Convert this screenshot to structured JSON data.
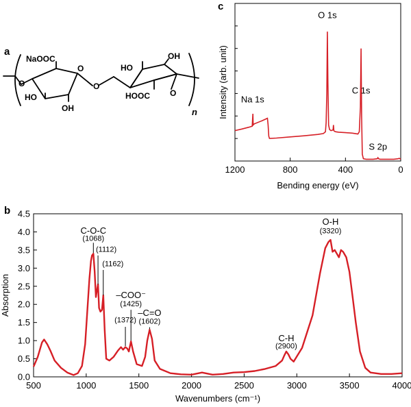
{
  "panels": {
    "a": "a",
    "b": "b",
    "c": "c"
  },
  "structure": {
    "name": "sodium alginate repeat unit",
    "labels": {
      "naooc": "NaOOC",
      "oh_left_bottom": "HO",
      "oh_left_mid": "OH",
      "oh_right_top_left": "HO",
      "oh_right_top": "OH",
      "hooc": "HOOC",
      "n": "n"
    }
  },
  "chart_data": [
    {
      "id": "xps",
      "type": "line",
      "title": "",
      "xlabel": "Bending energy (eV)",
      "ylabel": "Intensity (arb. unit)",
      "xlim": [
        1200,
        0
      ],
      "x_reversed": true,
      "xticks": [
        1200,
        800,
        400,
        0
      ],
      "yticks_unlabeled": true,
      "ylim": [
        0,
        7
      ],
      "line_color": "#d61f26",
      "series": [
        {
          "x": [
            1200,
            1150,
            1100,
            1075,
            1072,
            1070,
            1068,
            1060,
            1000,
            965,
            960,
            955,
            950,
            900,
            800,
            700,
            600,
            560,
            545,
            540,
            535,
            531,
            527,
            522,
            515,
            505,
            490,
            487,
            484,
            480,
            470,
            450,
            400,
            350,
            310,
            300,
            292,
            287,
            283,
            278,
            270,
            250,
            200,
            170,
            165,
            160,
            150,
            100,
            50,
            20,
            10,
            0
          ],
          "y": [
            1.35,
            1.42,
            1.5,
            1.55,
            1.9,
            2.1,
            1.6,
            1.65,
            1.8,
            1.9,
            1.6,
            1.1,
            1.0,
            1.02,
            1.07,
            1.12,
            1.18,
            1.22,
            1.3,
            1.7,
            3.0,
            5.75,
            3.5,
            1.6,
            1.4,
            1.35,
            1.38,
            1.6,
            1.35,
            1.32,
            1.3,
            1.28,
            1.26,
            1.24,
            1.2,
            1.3,
            2.4,
            5.0,
            2.0,
            0.3,
            0.1,
            0.08,
            0.08,
            0.1,
            0.15,
            0.1,
            0.08,
            0.08,
            0.08,
            0.1,
            0.12,
            0.08
          ]
        }
      ],
      "annotations": [
        {
          "text": "Na 1s",
          "x": 1072,
          "y": 2.6
        },
        {
          "text": "O 1s",
          "x": 531,
          "y": 6.35
        },
        {
          "text": "C 1s",
          "x": 287,
          "y": 3.0
        },
        {
          "text": "S 2p",
          "x": 165,
          "y": 0.5
        }
      ]
    },
    {
      "id": "ftir",
      "type": "line",
      "title": "",
      "xlabel": "Wavenumbers (cm⁻¹)",
      "ylabel": "Absorption",
      "xlim": [
        500,
        4000
      ],
      "ylim": [
        0,
        4.5
      ],
      "xticks": [
        500,
        1000,
        1500,
        2000,
        2500,
        3000,
        3500,
        4000
      ],
      "yticks": [
        0.0,
        0.5,
        1.0,
        1.5,
        2.0,
        2.5,
        3.0,
        3.5,
        4.0,
        4.5
      ],
      "line_color": "#d61f26",
      "series": [
        {
          "x": [
            500,
            540,
            580,
            600,
            630,
            660,
            700,
            760,
            820,
            880,
            920,
            960,
            990,
            1010,
            1030,
            1045,
            1055,
            1068,
            1080,
            1092,
            1100,
            1112,
            1122,
            1135,
            1150,
            1162,
            1175,
            1190,
            1220,
            1260,
            1300,
            1330,
            1350,
            1372,
            1390,
            1405,
            1425,
            1445,
            1480,
            1530,
            1560,
            1580,
            1602,
            1625,
            1650,
            1700,
            1800,
            1900,
            2000,
            2100,
            2200,
            2300,
            2400,
            2500,
            2600,
            2700,
            2800,
            2860,
            2880,
            2900,
            2920,
            2940,
            2970,
            3050,
            3150,
            3220,
            3270,
            3300,
            3320,
            3340,
            3360,
            3380,
            3400,
            3420,
            3440,
            3470,
            3500,
            3530,
            3560,
            3600,
            3650,
            3700,
            3800,
            3900,
            4000
          ],
          "y": [
            0.28,
            0.55,
            0.95,
            1.03,
            0.9,
            0.72,
            0.45,
            0.25,
            0.12,
            0.05,
            0.1,
            0.3,
            0.9,
            1.8,
            2.7,
            3.2,
            3.35,
            3.4,
            2.9,
            2.2,
            2.35,
            2.55,
            1.9,
            1.8,
            1.85,
            2.25,
            1.3,
            0.5,
            0.45,
            0.55,
            0.72,
            0.82,
            0.75,
            0.82,
            0.78,
            0.7,
            0.98,
            0.7,
            0.35,
            0.3,
            0.55,
            1.0,
            1.3,
            1.05,
            0.45,
            0.22,
            0.1,
            0.07,
            0.06,
            0.12,
            0.06,
            0.08,
            0.12,
            0.13,
            0.16,
            0.22,
            0.3,
            0.45,
            0.58,
            0.7,
            0.62,
            0.5,
            0.42,
            0.8,
            1.7,
            2.85,
            3.55,
            3.72,
            3.78,
            3.45,
            3.5,
            3.4,
            3.3,
            3.5,
            3.45,
            3.3,
            2.9,
            2.2,
            1.5,
            0.7,
            0.25,
            0.12,
            0.08,
            0.08,
            0.1
          ]
        }
      ],
      "annotations": [
        {
          "text": "C-O-C",
          "x": 1068,
          "y": 3.95
        },
        {
          "text": "(1068)",
          "x": 1068,
          "y": 3.75
        },
        {
          "text": "(1112)",
          "x": 1112,
          "y": 3.45
        },
        {
          "text": "(1162)",
          "x": 1162,
          "y": 3.05
        },
        {
          "text": "–COO⁻",
          "x": 1425,
          "y": 2.17
        },
        {
          "text": "(1425)",
          "x": 1425,
          "y": 1.95
        },
        {
          "text": "(1372)",
          "x": 1372,
          "y": 1.5
        },
        {
          "text": "–C=O",
          "x": 1602,
          "y": 1.68
        },
        {
          "text": "(1602)",
          "x": 1602,
          "y": 1.47
        },
        {
          "text": "C-H",
          "x": 2900,
          "y": 0.98
        },
        {
          "text": "(2900)",
          "x": 2900,
          "y": 0.78
        },
        {
          "text": "O-H",
          "x": 3320,
          "y": 4.2
        },
        {
          "text": "(3320)",
          "x": 3320,
          "y": 3.96
        }
      ]
    }
  ]
}
